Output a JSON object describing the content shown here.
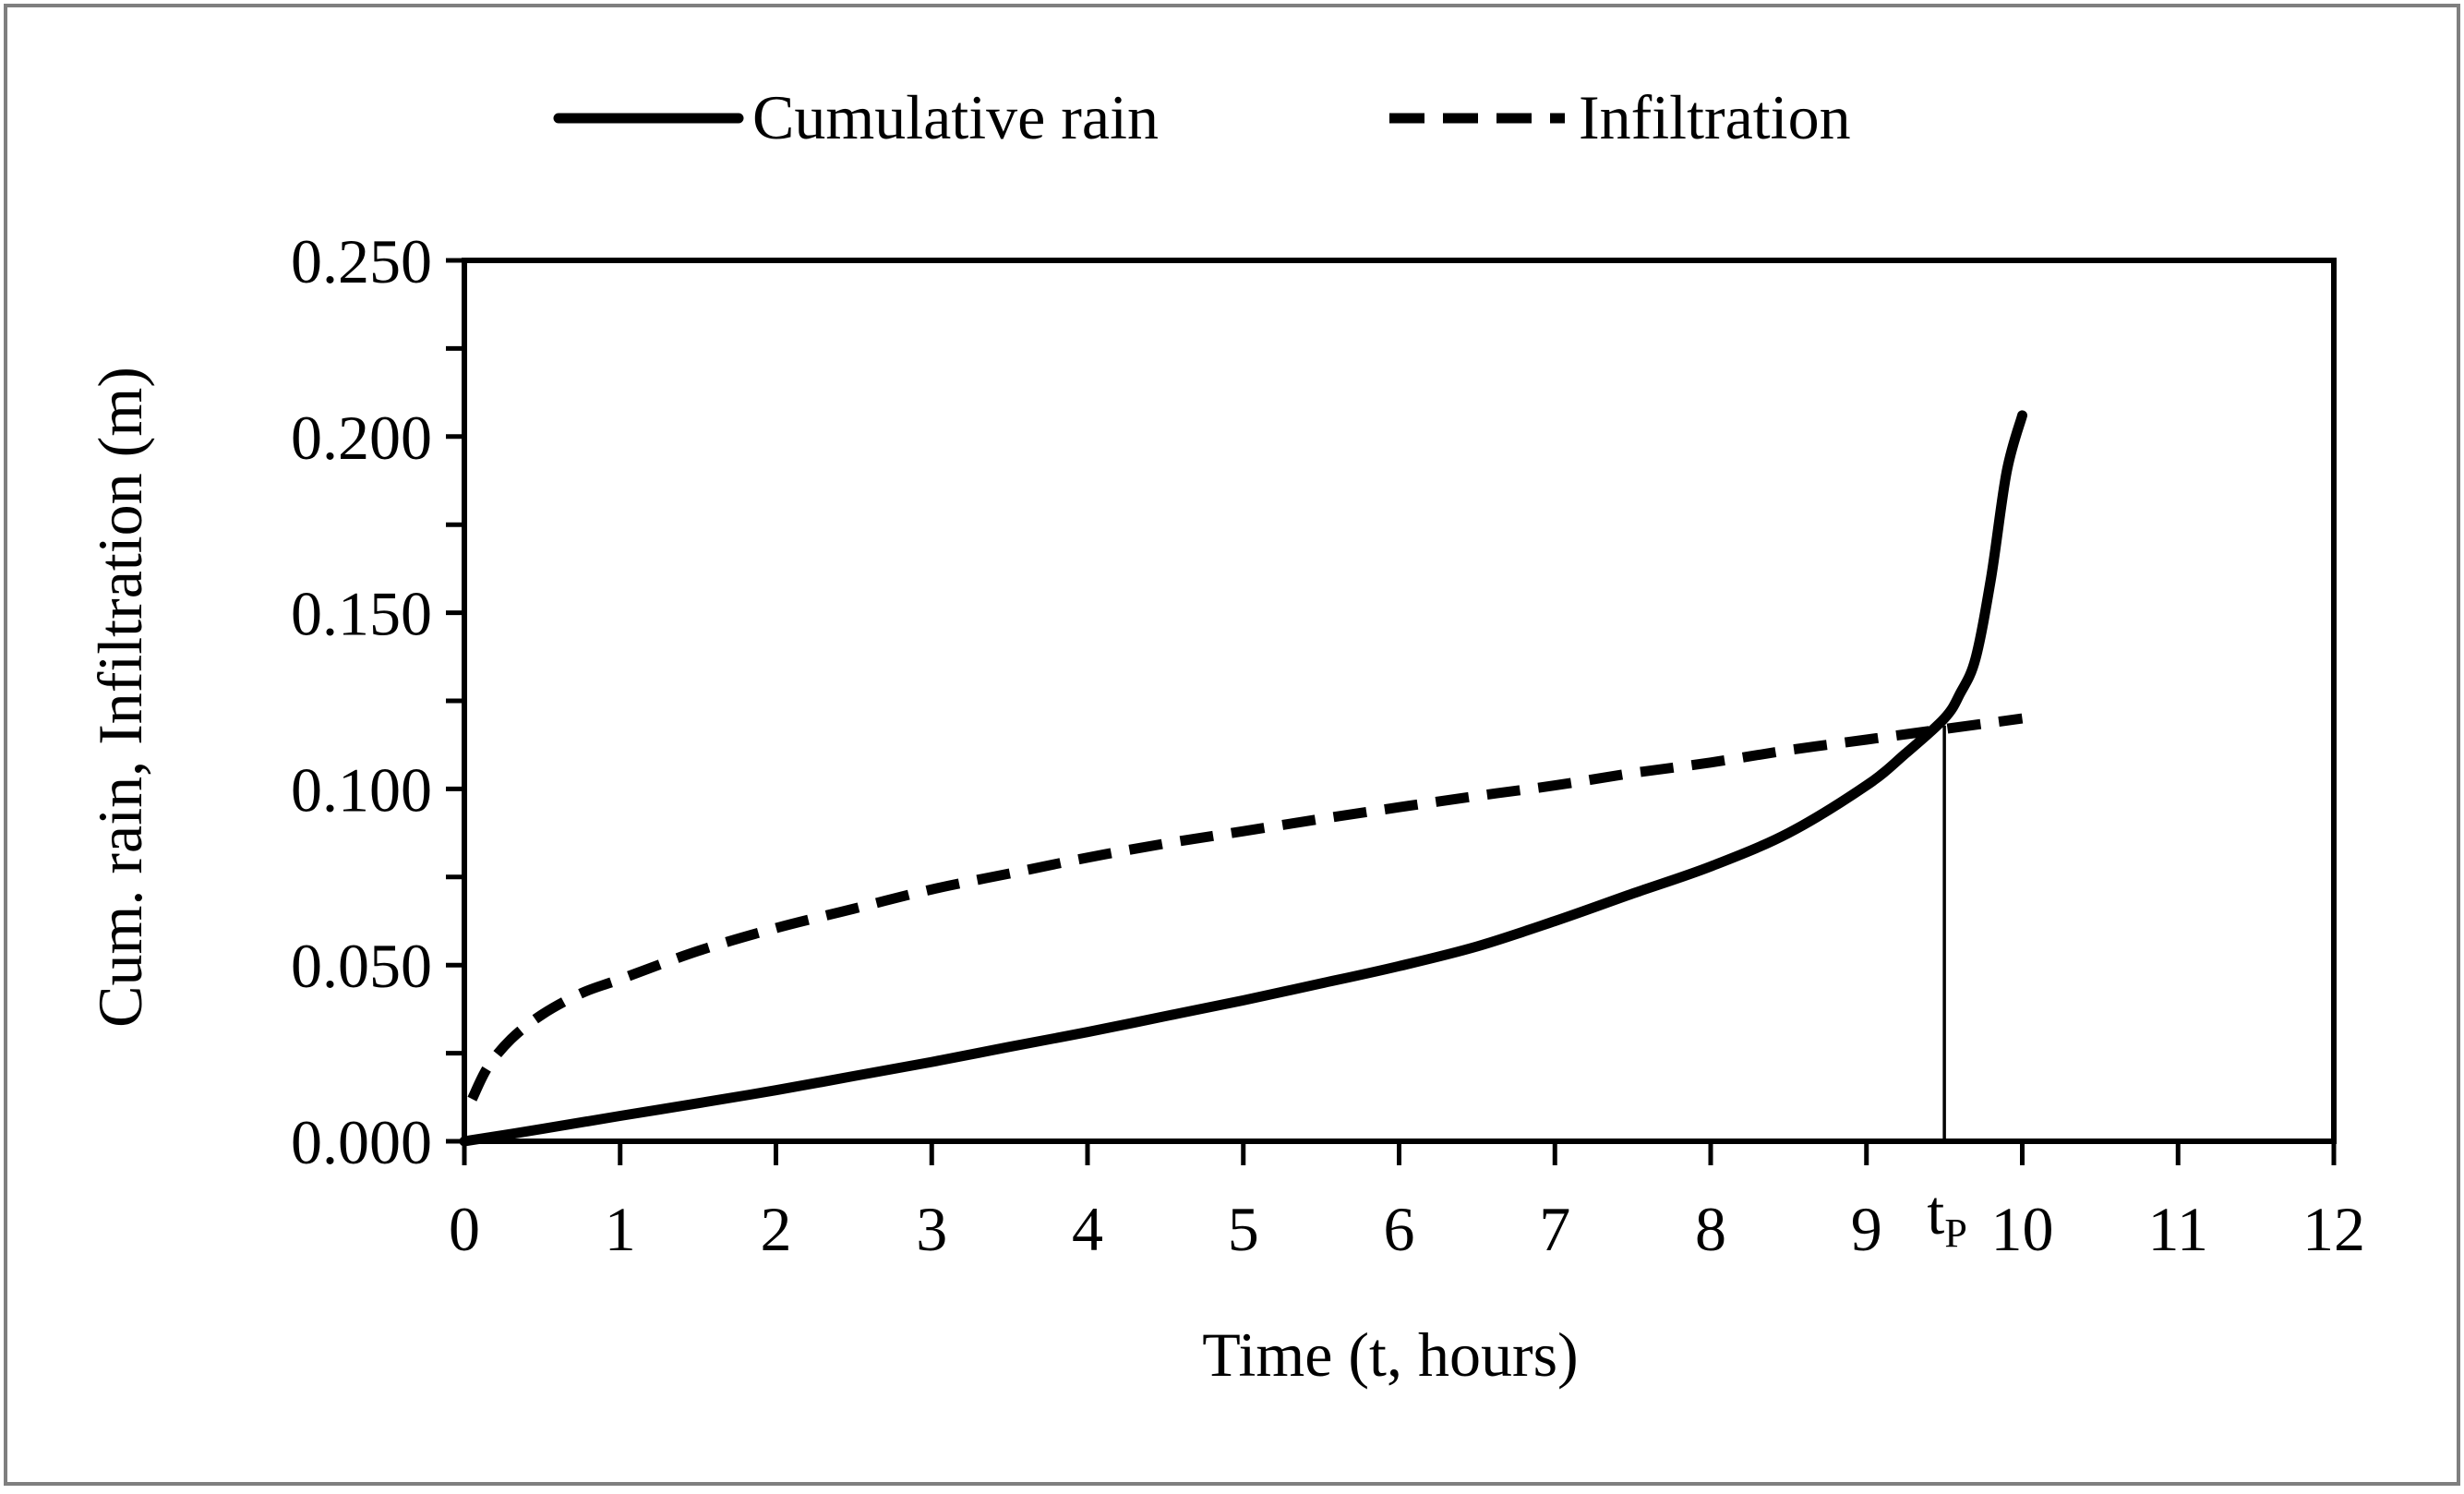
{
  "chart_data": {
    "type": "line",
    "title": "",
    "xlabel": "Time (t, hours)",
    "ylabel": "Cum. rain, Infiltration (m)",
    "xlim": [
      0,
      12
    ],
    "ylim": [
      0,
      0.25
    ],
    "x_ticks": [
      0,
      1,
      2,
      3,
      4,
      5,
      6,
      7,
      8,
      9,
      10,
      11,
      12
    ],
    "x_tick_labels": [
      "0",
      "1",
      "2",
      "3",
      "4",
      "5",
      "6",
      "7",
      "8",
      "9",
      "10",
      "11",
      "12"
    ],
    "y_ticks": [
      0,
      0.05,
      0.1,
      0.15,
      0.2,
      0.25
    ],
    "y_tick_labels": [
      "0.000",
      "0.050",
      "0.100",
      "0.150",
      "0.200",
      "0.250"
    ],
    "y_minor_step": 0.025,
    "grid": false,
    "legend_position": "top-center",
    "series": [
      {
        "name": "Cumulative rain",
        "style": "solid",
        "color": "#000000",
        "x": [
          0,
          0.5,
          1,
          1.5,
          2,
          2.5,
          3,
          3.5,
          4,
          4.5,
          5,
          5.5,
          6,
          6.5,
          7,
          7.5,
          8,
          8.5,
          9,
          9.25,
          9.5,
          9.6,
          9.7,
          9.8,
          9.9,
          10
        ],
        "y": [
          0,
          0.0035,
          0.0072,
          0.0108,
          0.0145,
          0.0185,
          0.0225,
          0.0268,
          0.031,
          0.0355,
          0.04,
          0.0448,
          0.0497,
          0.0553,
          0.0625,
          0.0703,
          0.078,
          0.0875,
          0.101,
          0.11,
          0.12,
          0.127,
          0.137,
          0.16,
          0.19,
          0.206
        ]
      },
      {
        "name": "Infiltration",
        "style": "dashed",
        "color": "#000000",
        "x": [
          0.05,
          0.15,
          0.3,
          0.5,
          0.75,
          1,
          1.5,
          2,
          2.5,
          3,
          3.5,
          4,
          4.5,
          5,
          5.5,
          6,
          6.5,
          7,
          7.5,
          8,
          8.5,
          9,
          9.5,
          10
        ],
        "y": [
          0.012,
          0.021,
          0.029,
          0.036,
          0.042,
          0.046,
          0.054,
          0.0605,
          0.066,
          0.0715,
          0.076,
          0.0805,
          0.0845,
          0.088,
          0.0915,
          0.0948,
          0.098,
          0.101,
          0.1045,
          0.1075,
          0.111,
          0.114,
          0.117,
          0.12
        ]
      }
    ],
    "annotations": [
      {
        "type": "vertical-line",
        "x": 9.5,
        "y_from": 0,
        "y_to": 0.118,
        "label_main": "t",
        "label_sub": "P"
      }
    ]
  }
}
